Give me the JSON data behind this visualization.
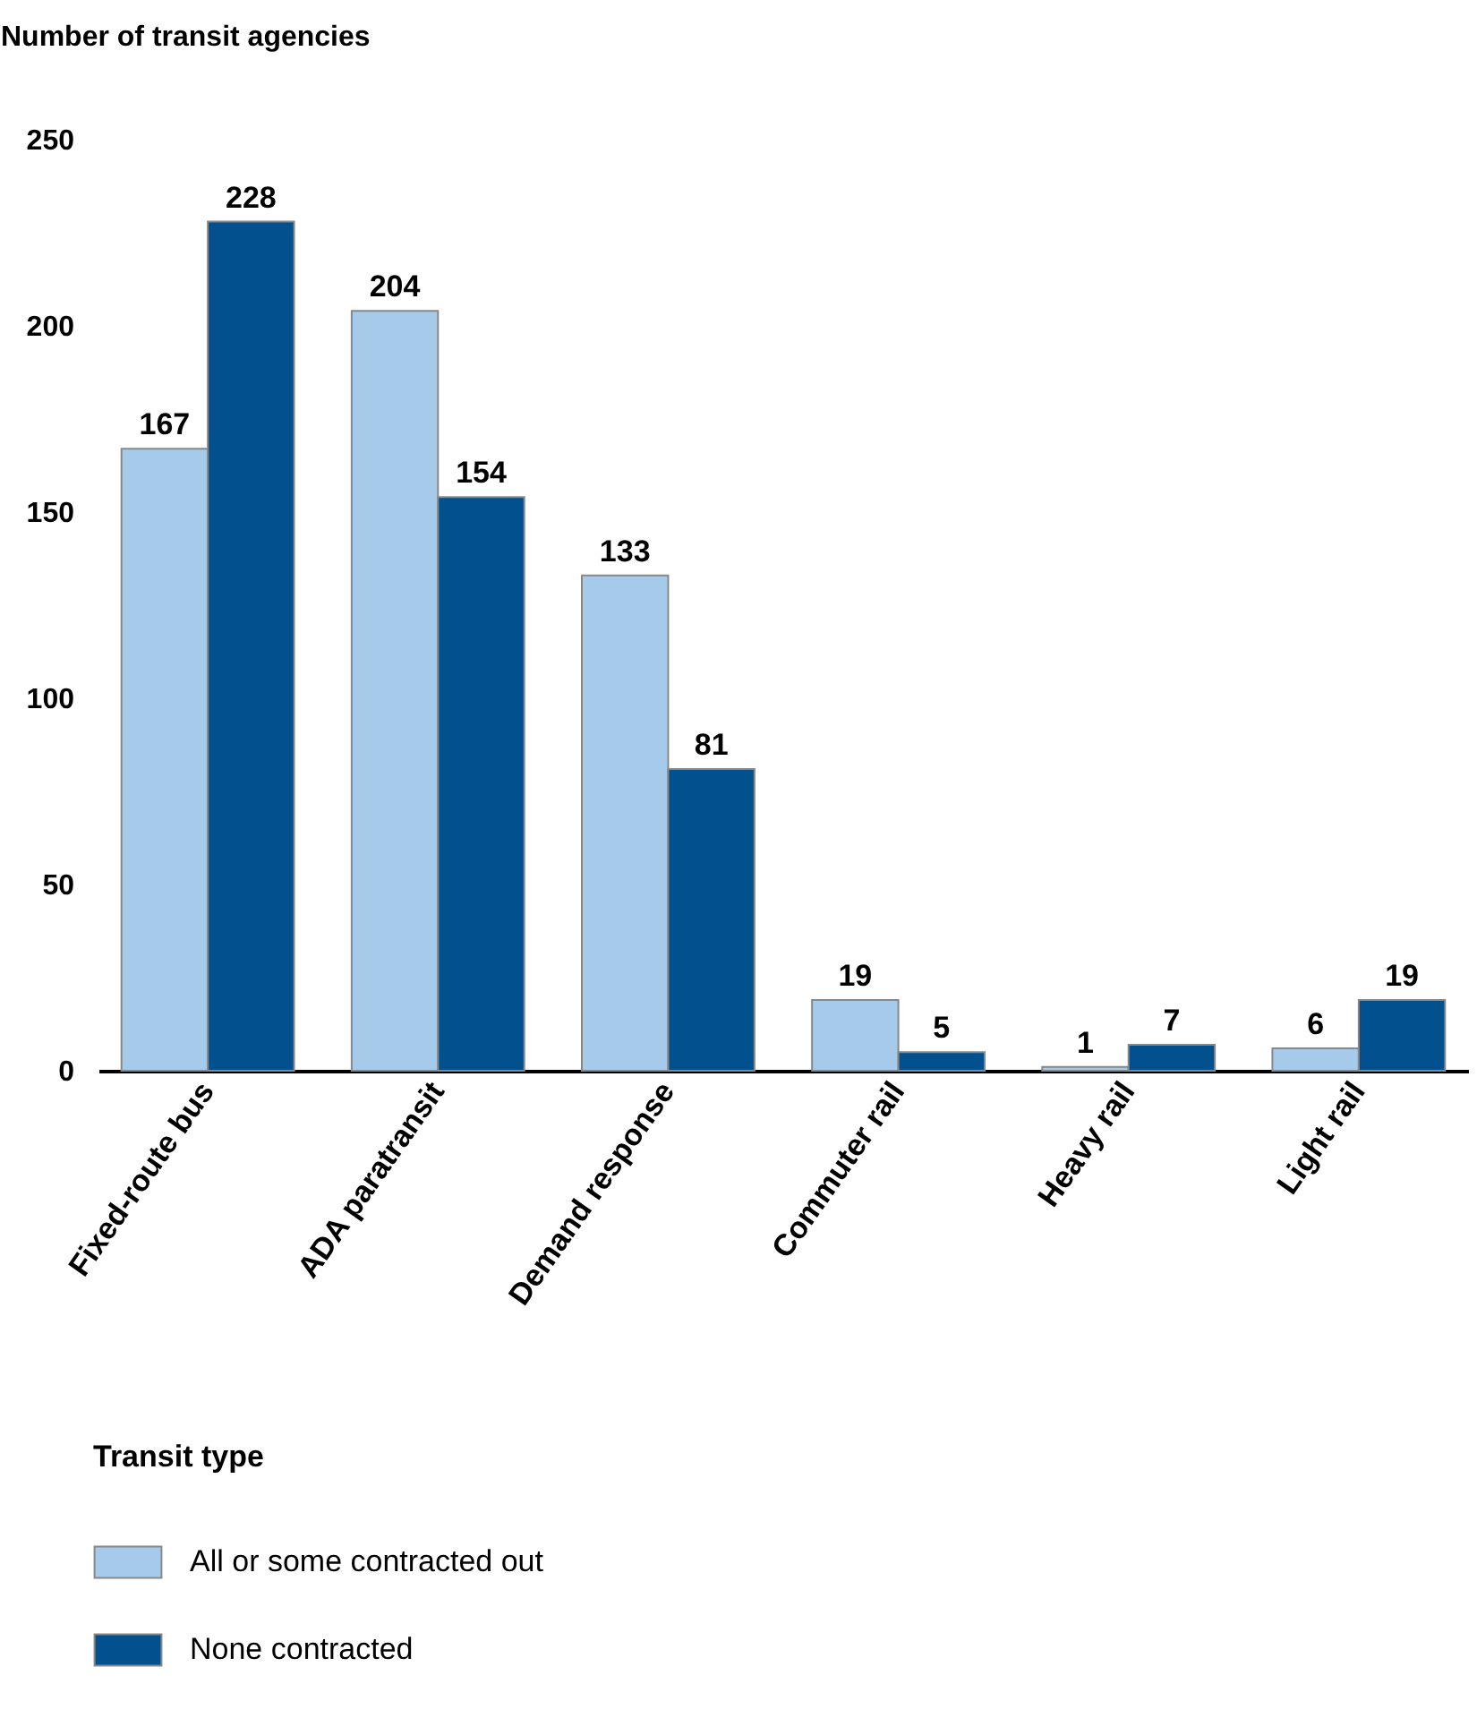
{
  "chart_data": {
    "type": "bar",
    "ylabel": "Number of transit agencies",
    "legend_title": "Transit type",
    "categories": [
      "Fixed-route bus",
      "ADA paratransit",
      "Demand response",
      "Commuter rail",
      "Heavy rail",
      "Light rail"
    ],
    "series": [
      {
        "name": "All or some contracted out",
        "color": "#a6cbea",
        "values": [
          167,
          204,
          133,
          19,
          1,
          6
        ]
      },
      {
        "name": "None contracted",
        "color": "#02508e",
        "values": [
          228,
          154,
          81,
          5,
          7,
          19
        ]
      }
    ],
    "ylim": [
      0,
      250
    ],
    "yticks": [
      0,
      50,
      100,
      150,
      200,
      250
    ],
    "data_labels": true,
    "legend": "bottom",
    "grid": false
  }
}
